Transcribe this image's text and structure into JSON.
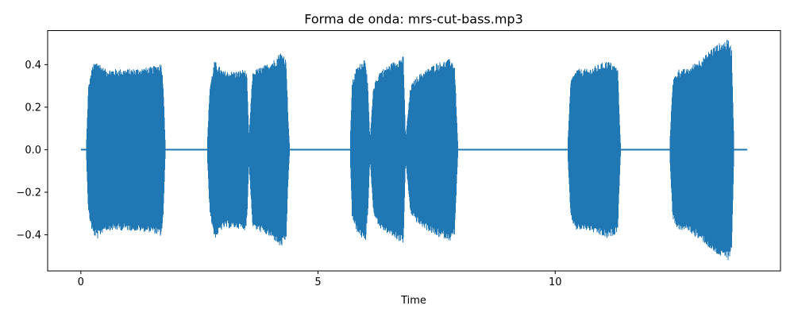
{
  "chart_data": {
    "type": "line",
    "title": "Forma de onda: mrs-cut-bass.mp3",
    "xlabel": "Time",
    "ylabel": "",
    "xlim": [
      -0.7,
      14.75
    ],
    "ylim": [
      -0.57,
      0.56
    ],
    "xticks": [
      0,
      5,
      10
    ],
    "xtick_labels": [
      "0",
      "5",
      "10"
    ],
    "yticks": [
      -0.4,
      -0.2,
      0.0,
      0.2,
      0.4
    ],
    "ytick_labels": [
      "−0.4",
      "−0.2",
      "0.0",
      "0.2",
      "0.4"
    ],
    "grid": false,
    "legend": "none",
    "series": [
      {
        "color": "#1f77b4",
        "baseline_noise": 0.004,
        "x_range": [
          0.0,
          14.05
        ],
        "segments": [
          {
            "start": 0.12,
            "end": 1.78,
            "env": [
              [
                0.12,
                0.05
              ],
              [
                0.16,
                0.3
              ],
              [
                0.25,
                0.4
              ],
              [
                0.35,
                0.42
              ],
              [
                0.5,
                0.38
              ],
              [
                1.0,
                0.38
              ],
              [
                1.5,
                0.39
              ],
              [
                1.7,
                0.41
              ],
              [
                1.74,
                0.3
              ],
              [
                1.78,
                0.03
              ]
            ]
          },
          {
            "start": 2.67,
            "end": 3.55,
            "env": [
              [
                2.67,
                0.05
              ],
              [
                2.72,
                0.3
              ],
              [
                2.82,
                0.42
              ],
              [
                3.0,
                0.37
              ],
              [
                3.3,
                0.37
              ],
              [
                3.45,
                0.38
              ],
              [
                3.5,
                0.35
              ],
              [
                3.55,
                0.02
              ]
            ]
          },
          {
            "start": 3.55,
            "end": 4.4,
            "env": [
              [
                3.55,
                0.08
              ],
              [
                3.62,
                0.36
              ],
              [
                3.7,
                0.38
              ],
              [
                3.9,
                0.4
              ],
              [
                4.1,
                0.43
              ],
              [
                4.2,
                0.46
              ],
              [
                4.28,
                0.45
              ],
              [
                4.33,
                0.42
              ],
              [
                4.37,
                0.15
              ],
              [
                4.4,
                0.02
              ]
            ]
          },
          {
            "start": 5.68,
            "end": 6.1,
            "env": [
              [
                5.68,
                0.05
              ],
              [
                5.72,
                0.32
              ],
              [
                5.8,
                0.38
              ],
              [
                5.9,
                0.41
              ],
              [
                6.0,
                0.44
              ],
              [
                6.05,
                0.3
              ],
              [
                6.1,
                0.02
              ]
            ]
          },
          {
            "start": 6.1,
            "end": 6.85,
            "env": [
              [
                6.1,
                0.06
              ],
              [
                6.17,
                0.3
              ],
              [
                6.3,
                0.37
              ],
              [
                6.5,
                0.4
              ],
              [
                6.7,
                0.43
              ],
              [
                6.8,
                0.44
              ],
              [
                6.85,
                0.02
              ]
            ]
          },
          {
            "start": 6.85,
            "end": 7.95,
            "env": [
              [
                6.85,
                0.06
              ],
              [
                6.95,
                0.3
              ],
              [
                7.1,
                0.35
              ],
              [
                7.3,
                0.38
              ],
              [
                7.5,
                0.41
              ],
              [
                7.7,
                0.42
              ],
              [
                7.8,
                0.43
              ],
              [
                7.88,
                0.4
              ],
              [
                7.93,
                0.12
              ],
              [
                7.95,
                0.02
              ]
            ]
          },
          {
            "start": 10.27,
            "end": 11.38,
            "env": [
              [
                10.27,
                0.05
              ],
              [
                10.33,
                0.33
              ],
              [
                10.45,
                0.38
              ],
              [
                10.7,
                0.38
              ],
              [
                11.0,
                0.41
              ],
              [
                11.1,
                0.42
              ],
              [
                11.25,
                0.4
              ],
              [
                11.32,
                0.38
              ],
              [
                11.36,
                0.12
              ],
              [
                11.38,
                0.02
              ]
            ]
          },
          {
            "start": 12.42,
            "end": 13.77,
            "env": [
              [
                12.42,
                0.05
              ],
              [
                12.48,
                0.33
              ],
              [
                12.6,
                0.38
              ],
              [
                12.8,
                0.38
              ],
              [
                13.0,
                0.42
              ],
              [
                13.15,
                0.44
              ],
              [
                13.3,
                0.48
              ],
              [
                13.45,
                0.5
              ],
              [
                13.55,
                0.51
              ],
              [
                13.65,
                0.52
              ],
              [
                13.72,
                0.48
              ],
              [
                13.75,
                0.2
              ],
              [
                13.77,
                0.02
              ]
            ]
          }
        ]
      }
    ]
  }
}
